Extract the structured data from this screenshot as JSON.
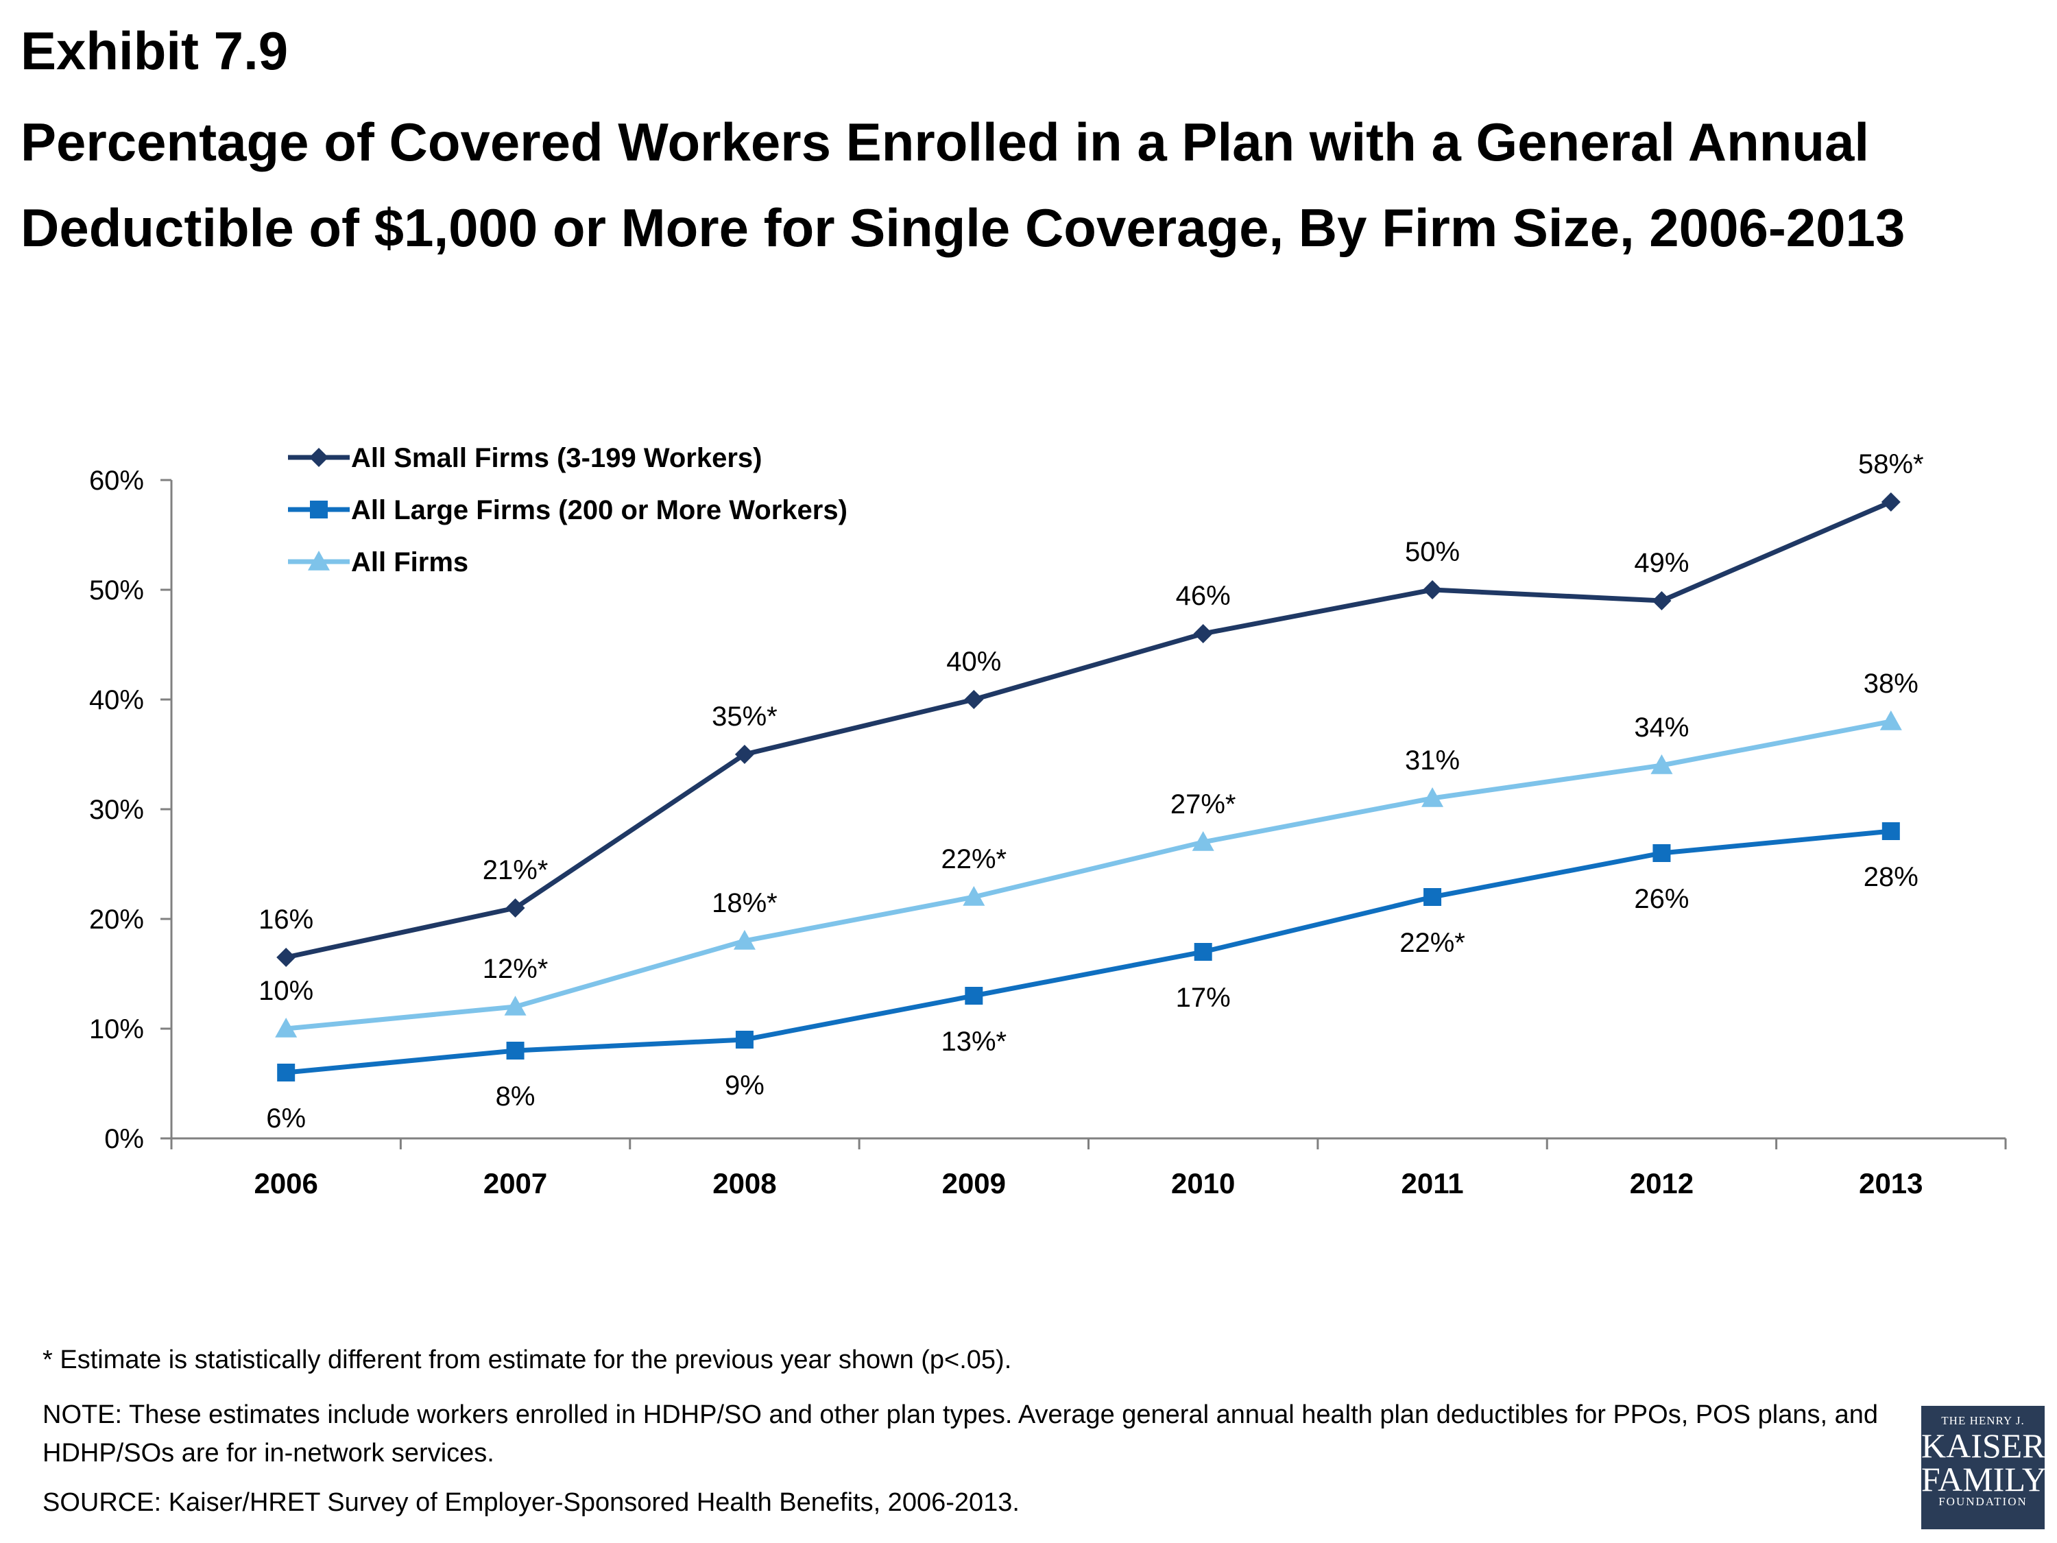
{
  "header": {
    "exhibit": "Exhibit 7.9",
    "title": "Percentage of Covered Workers Enrolled in a Plan with a General Annual Deductible of $1,000 or More for Single Coverage, By Firm Size, 2006-2013"
  },
  "chart_data": {
    "type": "line",
    "categories": [
      "2006",
      "2007",
      "2008",
      "2009",
      "2010",
      "2011",
      "2012",
      "2013"
    ],
    "ylim": [
      0,
      60
    ],
    "yticks": [
      "0%",
      "10%",
      "20%",
      "30%",
      "40%",
      "50%",
      "60%"
    ],
    "legend_position": "top-left",
    "grid": false,
    "series": [
      {
        "name": "All Small Firms (3-199 Workers)",
        "color": "#1f3864",
        "marker": "diamond",
        "values": [
          16.5,
          21,
          35,
          40,
          46,
          50,
          49,
          58
        ],
        "labels": [
          "16%",
          "21%*",
          "35%*",
          "40%",
          "46%",
          "50%",
          "49%",
          "58%*"
        ],
        "label_pos": [
          "above",
          "above",
          "above",
          "above",
          "above",
          "above",
          "above",
          "above"
        ]
      },
      {
        "name": "All Large Firms (200 or More Workers)",
        "color": "#0f6fc0",
        "marker": "square",
        "values": [
          6,
          8,
          9,
          13,
          17,
          22,
          26,
          28
        ],
        "labels": [
          "6%",
          "8%",
          "9%",
          "13%*",
          "17%",
          "22%*",
          "26%",
          "28%"
        ],
        "label_pos": [
          "below",
          "below",
          "below",
          "below",
          "below",
          "below",
          "below",
          "below"
        ]
      },
      {
        "name": "All Firms",
        "color": "#7ec3ea",
        "marker": "triangle",
        "values": [
          10,
          12,
          18,
          22,
          27,
          31,
          34,
          38
        ],
        "labels": [
          "10%",
          "12%*",
          "18%*",
          "22%*",
          "27%*",
          "31%",
          "34%",
          "38%"
        ],
        "label_pos": [
          "above",
          "above",
          "above",
          "above",
          "above",
          "above",
          "above",
          "above"
        ]
      }
    ]
  },
  "notes": {
    "asterisk": "* Estimate is statistically different from estimate for the previous year shown (p<.05).",
    "note": "NOTE: These estimates include workers enrolled in HDHP/SO and other plan types. Average general annual health plan deductibles for PPOs, POS plans, and HDHP/SOs are for in-network services.",
    "source": "SOURCE: Kaiser/HRET Survey of Employer-Sponsored Health Benefits, 2006-2013."
  },
  "logo": {
    "line1": "THE HENRY J.",
    "line2": "KAISER",
    "line3": "FAMILY",
    "line4": "FOUNDATION"
  }
}
